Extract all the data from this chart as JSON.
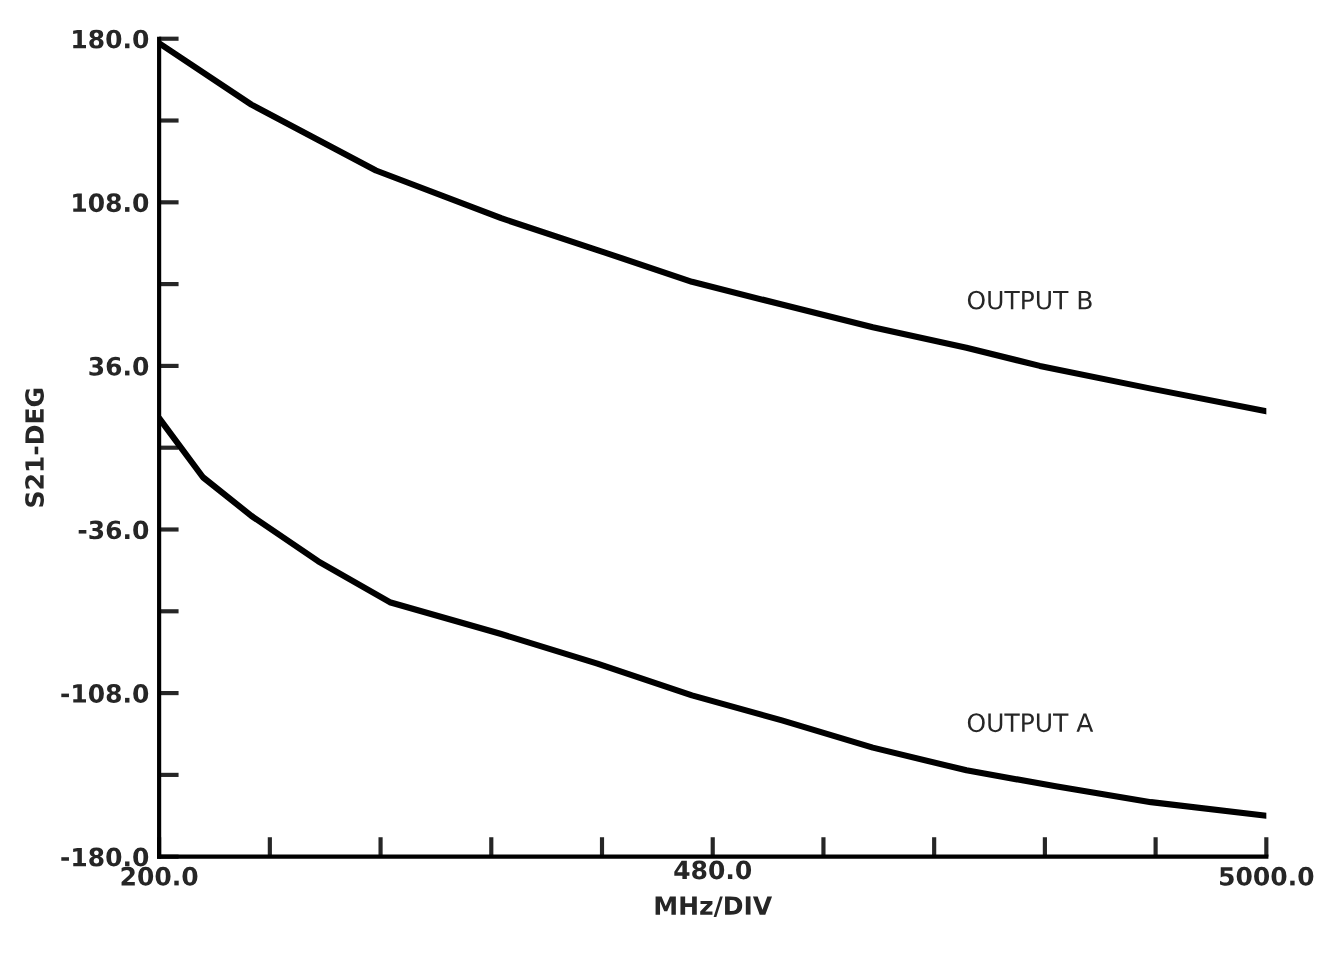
{
  "chart_data": {
    "type": "line",
    "xlabel": "480.0\nMHz/DIV",
    "ylabel": "S21-DEG",
    "xlim": [
      200,
      5000
    ],
    "ylim": [
      -180,
      180
    ],
    "xticks": [
      {
        "value": 200,
        "label": "200.0"
      },
      {
        "value": 680,
        "label": null
      },
      {
        "value": 1160,
        "label": null
      },
      {
        "value": 1640,
        "label": null
      },
      {
        "value": 2120,
        "label": null
      },
      {
        "value": 2600,
        "label": null
      },
      {
        "value": 3080,
        "label": null
      },
      {
        "value": 3560,
        "label": null
      },
      {
        "value": 4040,
        "label": null
      },
      {
        "value": 4520,
        "label": null
      },
      {
        "value": 5000,
        "label": "5000.0"
      }
    ],
    "yticks": [
      {
        "value": -180,
        "label": "-180.0"
      },
      {
        "value": -144,
        "label": null
      },
      {
        "value": -108,
        "label": "-108.0"
      },
      {
        "value": -72,
        "label": null
      },
      {
        "value": -36,
        "label": "-36.0"
      },
      {
        "value": 0,
        "label": null
      },
      {
        "value": 36,
        "label": "36.0"
      },
      {
        "value": 72,
        "label": null
      },
      {
        "value": 108,
        "label": "108.0"
      },
      {
        "value": 144,
        "label": null
      },
      {
        "value": 180,
        "label": "180.0"
      }
    ],
    "grid": false,
    "legend": false,
    "marker": "none",
    "line_style": "solid",
    "series": [
      {
        "name": "OUTPUT B",
        "color": "#000000",
        "x": [
          200,
          600,
          1140,
          1683,
          2100,
          2510,
          2900,
          3294,
          3700,
          4018,
          4500,
          5000
        ],
        "values": [
          178,
          151,
          122,
          101,
          87,
          73,
          63,
          53,
          44,
          36,
          26,
          16
        ]
      },
      {
        "name": "OUTPUT A",
        "color": "#000000",
        "x": [
          200,
          390,
          600,
          890,
          1200,
          1683,
          2100,
          2510,
          2900,
          3294,
          3700,
          4087,
          4500,
          5000
        ],
        "values": [
          13,
          -13,
          -30,
          -50,
          -68,
          -82,
          -95,
          -109,
          -120,
          -132,
          -142,
          -149,
          -156,
          -162
        ]
      }
    ]
  }
}
